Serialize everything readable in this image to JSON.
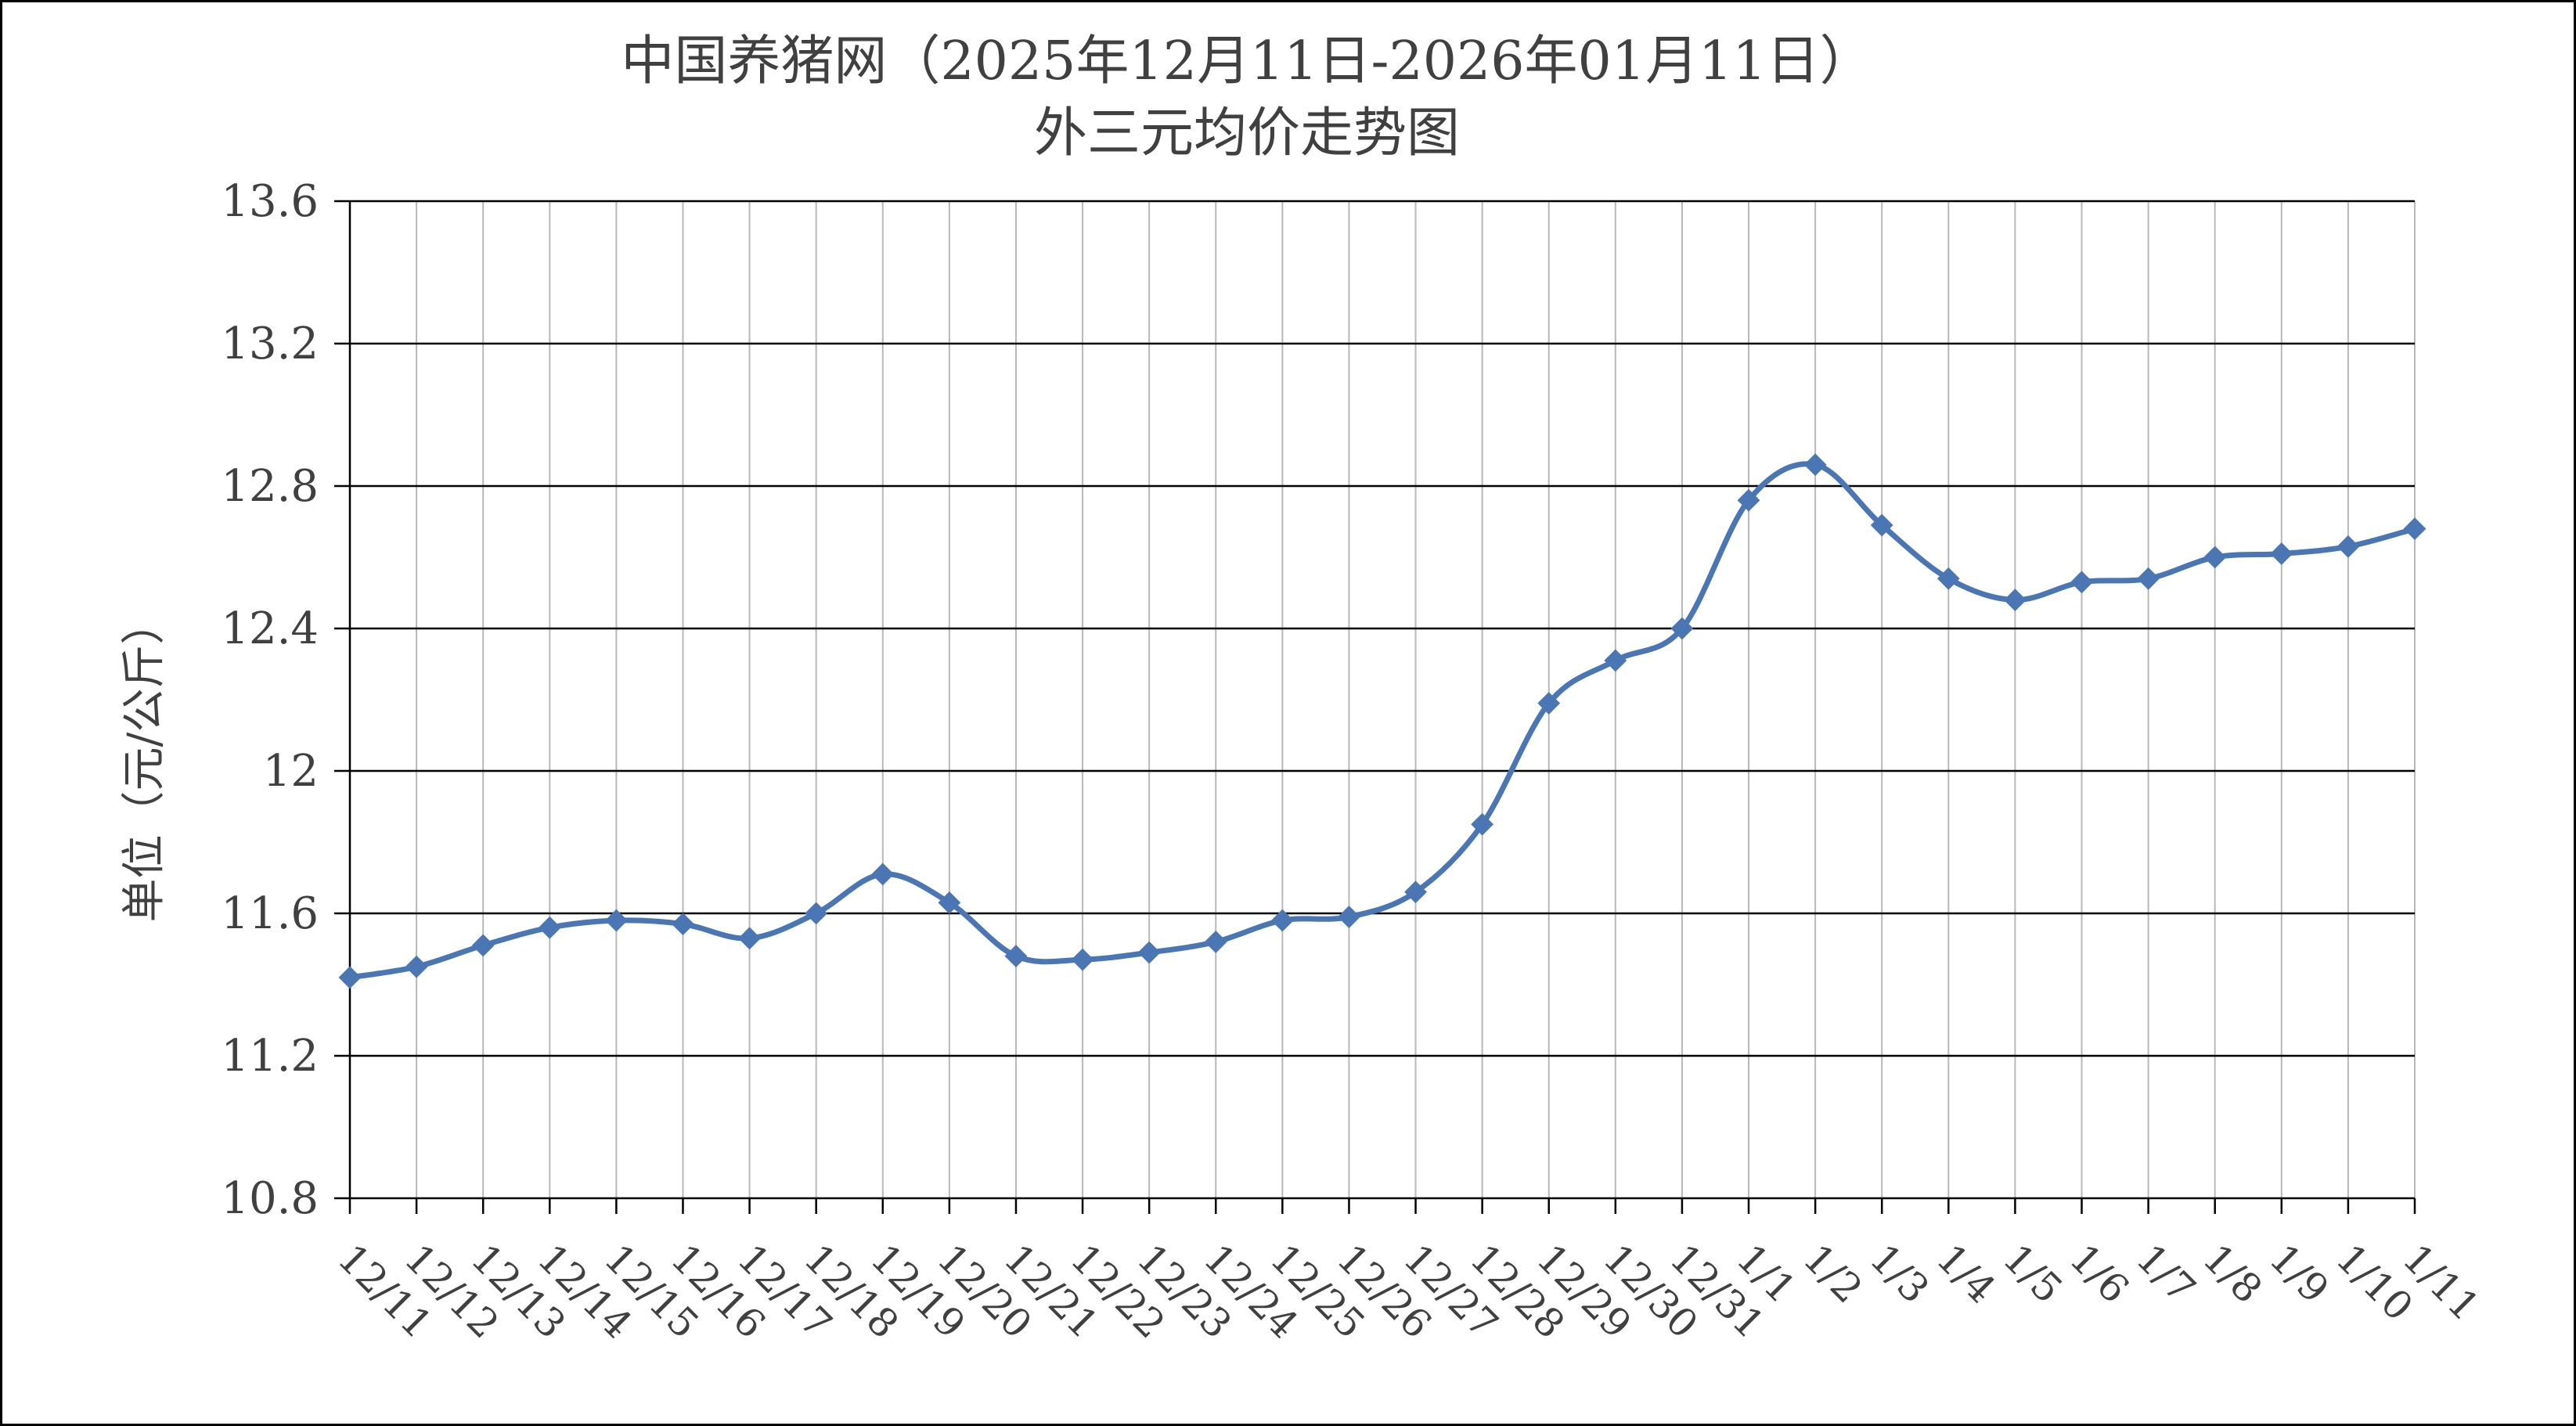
{
  "chart_data": {
    "type": "line",
    "title_lines": [
      "中国养猪网（2025年12月11日-2026年01月11日）",
      "外三元均价走势图"
    ],
    "xlabel": "",
    "ylabel": "单位（元/公斤）",
    "ylim": [
      10.8,
      13.6
    ],
    "yticks": [
      "10.8",
      "11.2",
      "11.6",
      "12",
      "12.4",
      "12.8",
      "13.2",
      "13.6"
    ],
    "grid": true,
    "legend": "none",
    "categories": [
      "12/11",
      "12/12",
      "12/13",
      "12/14",
      "12/15",
      "12/16",
      "12/17",
      "12/18",
      "12/19",
      "12/20",
      "12/21",
      "12/22",
      "12/23",
      "12/24",
      "12/25",
      "12/26",
      "12/27",
      "12/28",
      "12/29",
      "12/30",
      "12/31",
      "1/1",
      "1/2",
      "1/3",
      "1/4",
      "1/5",
      "1/6",
      "1/7",
      "1/8",
      "1/9",
      "1/10",
      "1/11"
    ],
    "series": [
      {
        "values": [
          11.42,
          11.45,
          11.51,
          11.56,
          11.58,
          11.57,
          11.53,
          11.6,
          11.71,
          11.63,
          11.48,
          11.47,
          11.49,
          11.52,
          11.58,
          11.59,
          11.66,
          11.85,
          12.19,
          12.31,
          12.4,
          12.76,
          12.86,
          12.69,
          12.54,
          12.48,
          12.53,
          12.54,
          12.6,
          12.61,
          12.63,
          12.68
        ],
        "color": "#4a77b4"
      }
    ]
  }
}
